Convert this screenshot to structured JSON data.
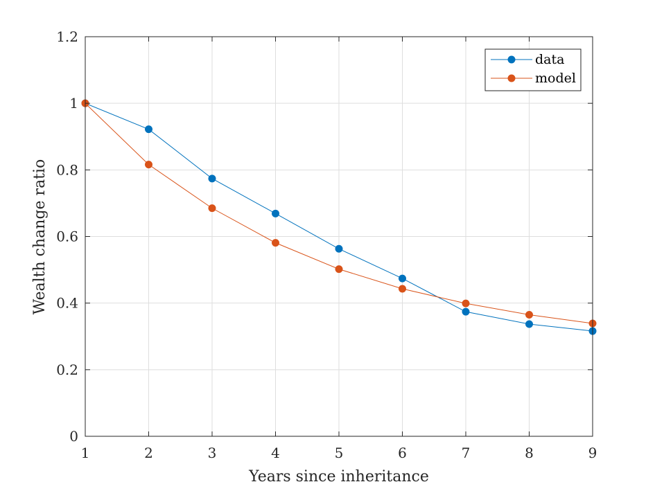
{
  "chart_data": {
    "type": "line",
    "xlabel": "Years since inheritance",
    "ylabel": "Wealth change ratio",
    "x": [
      1,
      2,
      3,
      4,
      5,
      6,
      7,
      8,
      9
    ],
    "xlim": [
      1,
      9
    ],
    "ylim": [
      0,
      1.2
    ],
    "xticks": [
      1,
      2,
      3,
      4,
      5,
      6,
      7,
      8,
      9
    ],
    "yticks": [
      0,
      0.2,
      0.4,
      0.6,
      0.8,
      1,
      1.2
    ],
    "xtick_labels": [
      "1",
      "2",
      "3",
      "4",
      "5",
      "6",
      "7",
      "8",
      "9"
    ],
    "ytick_labels": [
      "0",
      "0.2",
      "0.4",
      "0.6",
      "0.8",
      "1",
      "1.2"
    ],
    "grid": true,
    "legend_position": "top-right",
    "series": [
      {
        "name": "data",
        "color": "#0072BD",
        "values": [
          1.0,
          0.922,
          0.774,
          0.669,
          0.563,
          0.474,
          0.374,
          0.337,
          0.316
        ]
      },
      {
        "name": "model",
        "color": "#D95319",
        "values": [
          1.0,
          0.816,
          0.685,
          0.581,
          0.502,
          0.443,
          0.399,
          0.365,
          0.339
        ]
      }
    ]
  }
}
